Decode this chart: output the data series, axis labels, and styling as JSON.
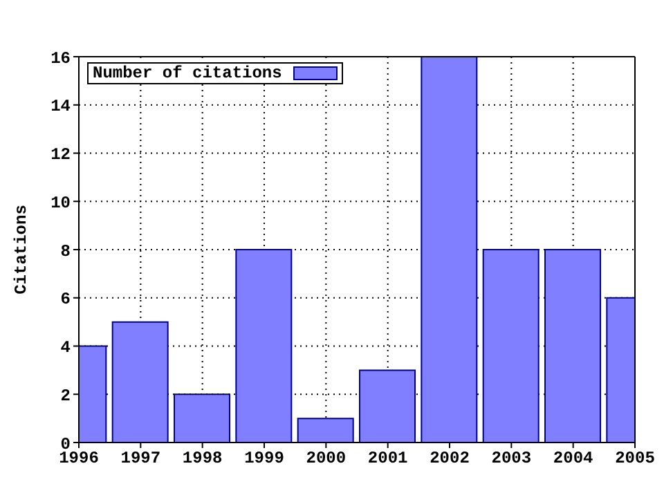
{
  "chart_data": {
    "type": "bar",
    "ylabel": "Citations",
    "x": [
      1996,
      1997,
      1998,
      1999,
      2000,
      2001,
      2002,
      2003,
      2004,
      2005
    ],
    "series": [
      {
        "name": "Number of citations",
        "color": "#7f7fff",
        "values": [
          4,
          5,
          2,
          8,
          1,
          3,
          16,
          8,
          8,
          6
        ]
      }
    ],
    "xlim": [
      1996,
      2005
    ],
    "xticks": [
      1996,
      1997,
      1998,
      1999,
      2000,
      2001,
      2002,
      2003,
      2004,
      2005
    ],
    "ylim": [
      0,
      16
    ],
    "yticks": [
      0,
      2,
      4,
      6,
      8,
      10,
      12,
      14,
      16
    ],
    "grid": true,
    "legend": "top left"
  }
}
